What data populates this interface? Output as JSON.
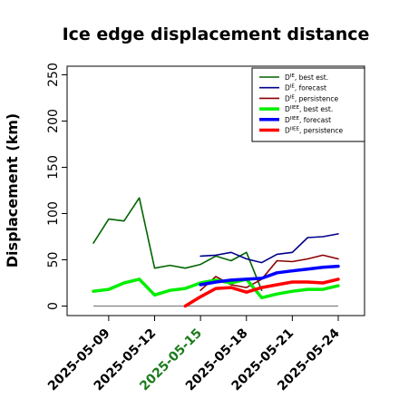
{
  "chart_data": {
    "type": "line",
    "title": "Ice edge displacement distance",
    "ylabel": "Displacement (km)",
    "xlabel": "",
    "ylim": [
      0,
      250
    ],
    "yticks": [
      0,
      50,
      100,
      150,
      200,
      250
    ],
    "xticks": [
      {
        "label": "2025-05-09",
        "color": "#000000"
      },
      {
        "label": "2025-05-12",
        "color": "#000000"
      },
      {
        "label": "2025-05-15",
        "color": "#1a7a1a"
      },
      {
        "label": "2025-05-18",
        "color": "#000000"
      },
      {
        "label": "2025-05-21",
        "color": "#000000"
      },
      {
        "label": "2025-05-24",
        "color": "#000000"
      }
    ],
    "x_dates": [
      "2025-05-08",
      "2025-05-09",
      "2025-05-10",
      "2025-05-11",
      "2025-05-12",
      "2025-05-13",
      "2025-05-14",
      "2025-05-15",
      "2025-05-16",
      "2025-05-17",
      "2025-05-18",
      "2025-05-19",
      "2025-05-20",
      "2025-05-21",
      "2025-05-22",
      "2025-05-23",
      "2025-05-24"
    ],
    "legend_position": "top-right",
    "grid": false,
    "series": [
      {
        "name": "D^IE, best est.",
        "color": "#006400",
        "width": 1.6,
        "values": [
          68,
          94,
          92,
          117,
          41,
          44,
          41,
          45,
          54,
          49,
          58,
          17,
          null,
          null,
          null,
          null,
          null
        ]
      },
      {
        "name": "D^IE, forecast",
        "color": "#00008b",
        "width": 1.6,
        "values": [
          null,
          null,
          null,
          null,
          null,
          null,
          null,
          54,
          55,
          58,
          51,
          47,
          56,
          58,
          74,
          75,
          78
        ]
      },
      {
        "name": "D^IE, persistence",
        "color": "#8b0000",
        "width": 1.6,
        "values": [
          null,
          null,
          null,
          null,
          null,
          null,
          null,
          17,
          32,
          23,
          20,
          29,
          49,
          48,
          51,
          55,
          51
        ]
      },
      {
        "name": "D^IIEE, best est.",
        "color": "#00ee00",
        "width": 3.5,
        "values": [
          16,
          18,
          25,
          29,
          12,
          17,
          19,
          25,
          28,
          25,
          29,
          9,
          13,
          16,
          18,
          18,
          22
        ]
      },
      {
        "name": "D^IIEE, forecast",
        "color": "#0000ff",
        "width": 3.5,
        "values": [
          null,
          null,
          null,
          null,
          null,
          null,
          null,
          23,
          26,
          28,
          29,
          30,
          36,
          38,
          40,
          42,
          43
        ]
      },
      {
        "name": "D^IIEE, persistence",
        "color": "#ff0000",
        "width": 3.5,
        "values": [
          null,
          null,
          null,
          null,
          null,
          null,
          0,
          10,
          19,
          20,
          15,
          20,
          23,
          26,
          26,
          25,
          29
        ]
      }
    ],
    "reference_line": {
      "y": 0,
      "color": "#808080"
    },
    "legend_labels": [
      {
        "base": "D",
        "sup": "IE",
        "rest": ", best est."
      },
      {
        "base": "D",
        "sup": "IE",
        "rest": ", forecast"
      },
      {
        "base": "D",
        "sup": "IE",
        "rest": ", persistence"
      },
      {
        "base": "D",
        "sup": "IIEE",
        "rest": ", best est."
      },
      {
        "base": "D",
        "sup": "IIEE",
        "rest": ", forecast"
      },
      {
        "base": "D",
        "sup": "IIEE",
        "rest": ", persistence"
      }
    ]
  }
}
